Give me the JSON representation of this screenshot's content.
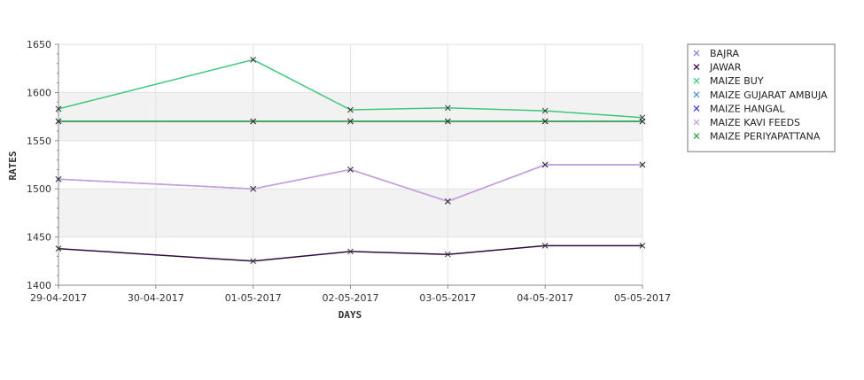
{
  "chart_data": {
    "type": "line",
    "xlabel": "DAYS",
    "ylabel": "RATES",
    "x": [
      "29-04-2017",
      "30-04-2017",
      "01-05-2017",
      "02-05-2017",
      "03-05-2017",
      "04-05-2017",
      "05-05-2017"
    ],
    "ylim": [
      1400,
      1650
    ],
    "yticks": [
      1400,
      1450,
      1500,
      1550,
      1600,
      1650
    ],
    "grid": true,
    "legend_position": "right",
    "series": [
      {
        "name": "BAJRA",
        "color": "#9b7fd4",
        "points": [
          [
            "29-04-2017",
            1510
          ],
          [
            "01-05-2017",
            1500
          ],
          [
            "02-05-2017",
            1520
          ],
          [
            "03-05-2017",
            1487
          ],
          [
            "04-05-2017",
            1525
          ],
          [
            "05-05-2017",
            1525
          ]
        ]
      },
      {
        "name": "JAWAR",
        "color": "#2b0b3f",
        "points": [
          [
            "29-04-2017",
            1438
          ],
          [
            "01-05-2017",
            1425
          ],
          [
            "02-05-2017",
            1435
          ],
          [
            "03-05-2017",
            1432
          ],
          [
            "04-05-2017",
            1441
          ],
          [
            "05-05-2017",
            1441
          ]
        ]
      },
      {
        "name": "MAIZE BUY",
        "color": "#3fc77a",
        "points": [
          [
            "29-04-2017",
            1583
          ],
          [
            "01-05-2017",
            1634
          ],
          [
            "02-05-2017",
            1582
          ],
          [
            "03-05-2017",
            1584
          ],
          [
            "04-05-2017",
            1581
          ],
          [
            "05-05-2017",
            1574
          ]
        ]
      },
      {
        "name": "MAIZE GUJARAT AMBUJA",
        "color": "#4a90c8",
        "points": [
          [
            "29-04-2017",
            1570
          ],
          [
            "01-05-2017",
            1570
          ],
          [
            "02-05-2017",
            1570
          ],
          [
            "03-05-2017",
            1570
          ],
          [
            "04-05-2017",
            1570
          ],
          [
            "05-05-2017",
            1570
          ]
        ]
      },
      {
        "name": "MAIZE HANGAL",
        "color": "#3a3ad8",
        "points": []
      },
      {
        "name": "MAIZE KAVI FEEDS",
        "color": "#c79fe0",
        "points": [
          [
            "29-04-2017",
            1510
          ],
          [
            "01-05-2017",
            1500
          ],
          [
            "02-05-2017",
            1520
          ],
          [
            "03-05-2017",
            1487
          ],
          [
            "04-05-2017",
            1525
          ],
          [
            "05-05-2017",
            1525
          ]
        ]
      },
      {
        "name": "MAIZE PERIYAPATTANA",
        "color": "#2e9e3e",
        "points": [
          [
            "29-04-2017",
            1570
          ],
          [
            "01-05-2017",
            1570
          ],
          [
            "02-05-2017",
            1570
          ],
          [
            "03-05-2017",
            1570
          ],
          [
            "04-05-2017",
            1570
          ],
          [
            "05-05-2017",
            1570
          ]
        ]
      }
    ]
  }
}
